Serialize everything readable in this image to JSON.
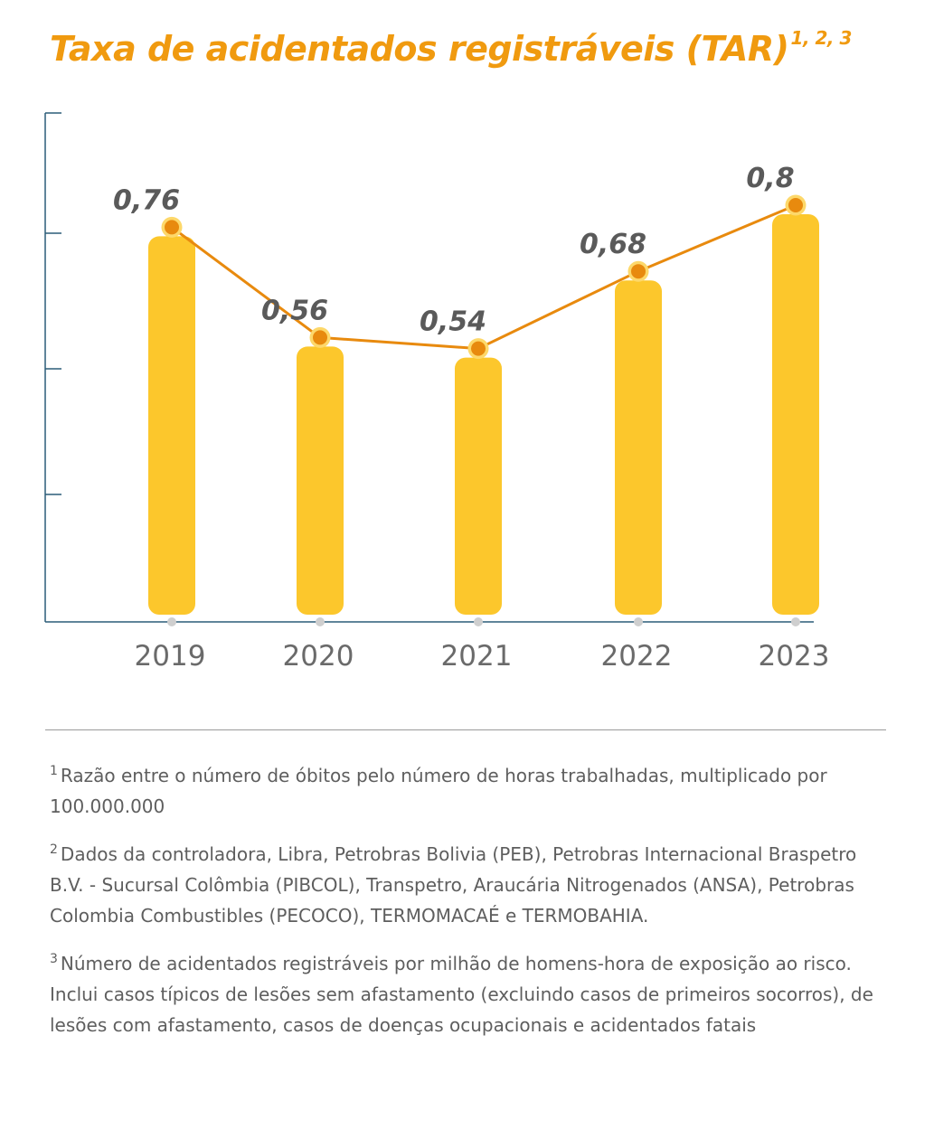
{
  "header": {
    "title": "Taxa de acidentados registráveis (TAR)",
    "title_superscript": "1, 2, 3"
  },
  "chart_data": {
    "type": "bar",
    "categories": [
      "2019",
      "2020",
      "2021",
      "2022",
      "2023"
    ],
    "values": [
      0.76,
      0.56,
      0.54,
      0.68,
      0.8
    ],
    "value_labels": [
      "0,76",
      "0,56",
      "0,54",
      "0,68",
      "0,8"
    ],
    "line_overlay": true,
    "ylim": [
      0,
      1
    ],
    "grid": false,
    "colors": {
      "bar": "#fcc72c",
      "line": "#e88a0e",
      "marker": "#e88a0e",
      "marker_halo": "#fdd86a",
      "axis": "#2c5d78",
      "value_label": "#5a5a5a",
      "tick_label": "#6a6a6a",
      "title": "#f09a0f"
    }
  },
  "footnotes": [
    {
      "marker": "1",
      "text": "Razão entre o número de óbitos pelo número de horas trabalhadas, multiplicado por 100.000.000"
    },
    {
      "marker": "2",
      "text": "Dados da controladora, Libra, Petrobras Bolivia (PEB), Petrobras Internacional Braspetro B.V. - Sucursal Colômbia (PIBCOL), Transpetro, Araucária Nitrogenados (ANSA), Petrobras Colombia Combustibles (PECOCO), TERMOMACAÉ e TERMOBAHIA."
    },
    {
      "marker": "3",
      "text": "Número de acidentados registráveis por milhão de homens-hora de exposição ao risco. Inclui casos típicos de lesões sem afastamento (excluindo casos de primeiros socorros), de lesões com afastamento, casos de doenças ocupacionais e acidentados fatais"
    }
  ]
}
